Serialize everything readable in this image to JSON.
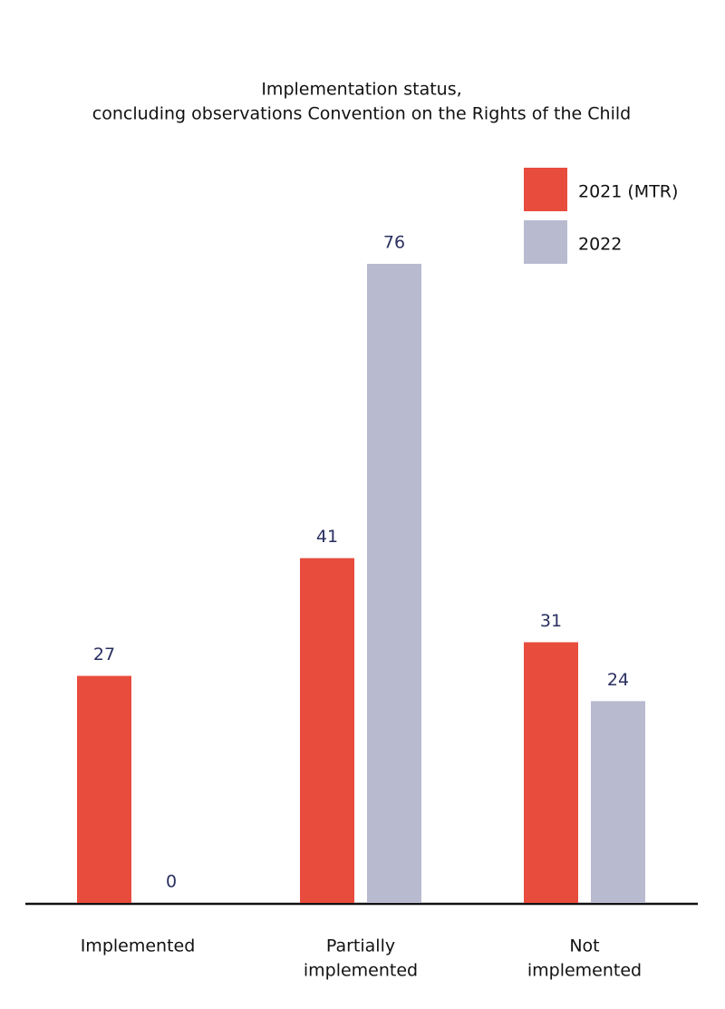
{
  "chart_data": {
    "type": "bar",
    "title": [
      "Implementation status,",
      "concluding observations Convention on the Rights of the Child"
    ],
    "categories": [
      [
        "Implemented"
      ],
      [
        "Partially",
        "implemented"
      ],
      [
        "Not",
        "implemented"
      ]
    ],
    "series": [
      {
        "name": "2021 (MTR)",
        "color": "#e84c3d",
        "values": [
          27,
          41,
          31
        ]
      },
      {
        "name": "2022",
        "color": "#b8bbcf",
        "values": [
          0,
          76,
          24
        ]
      }
    ],
    "legend": "top-right"
  }
}
